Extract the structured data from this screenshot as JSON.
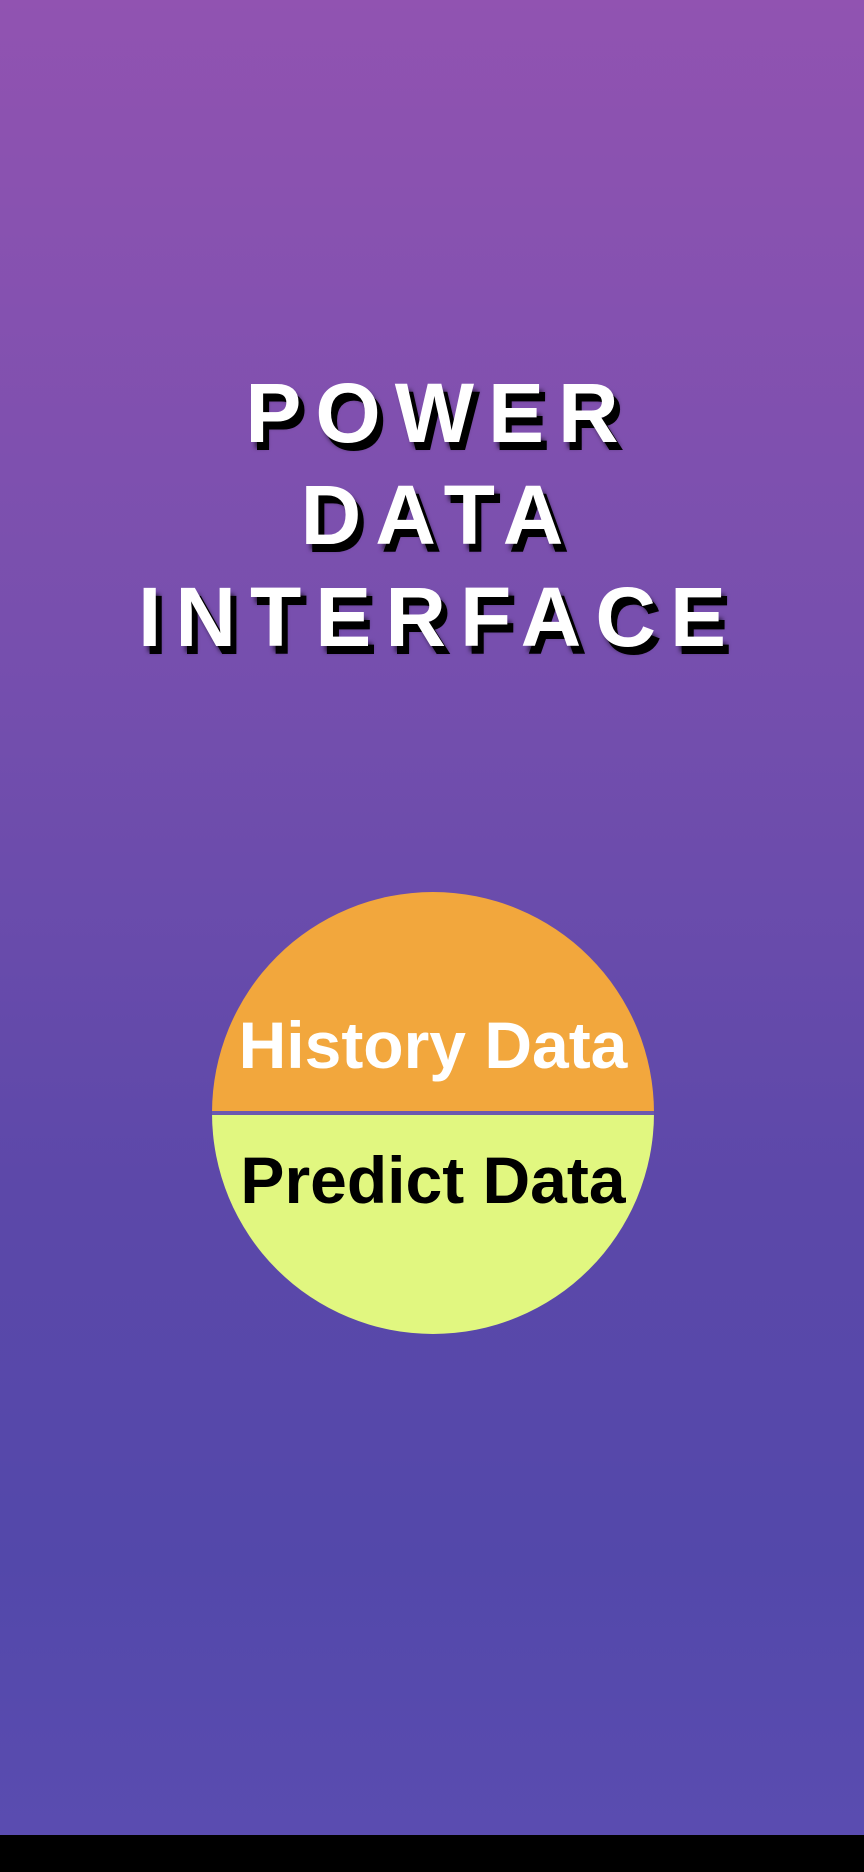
{
  "title": {
    "lines": [
      "POWER",
      "DATA",
      "INTERFACE"
    ]
  },
  "menu": {
    "history_label": "History Data",
    "predict_label": "Predict Data"
  },
  "colors": {
    "gradient_top": "#9153b1",
    "gradient_bottom": "#5348aa",
    "history_bg": "#f2a73d",
    "history_text": "#ffffff",
    "predict_bg": "#e1f780",
    "predict_text": "#000000",
    "title_text": "#ffffff",
    "title_shadow": "#000000"
  }
}
